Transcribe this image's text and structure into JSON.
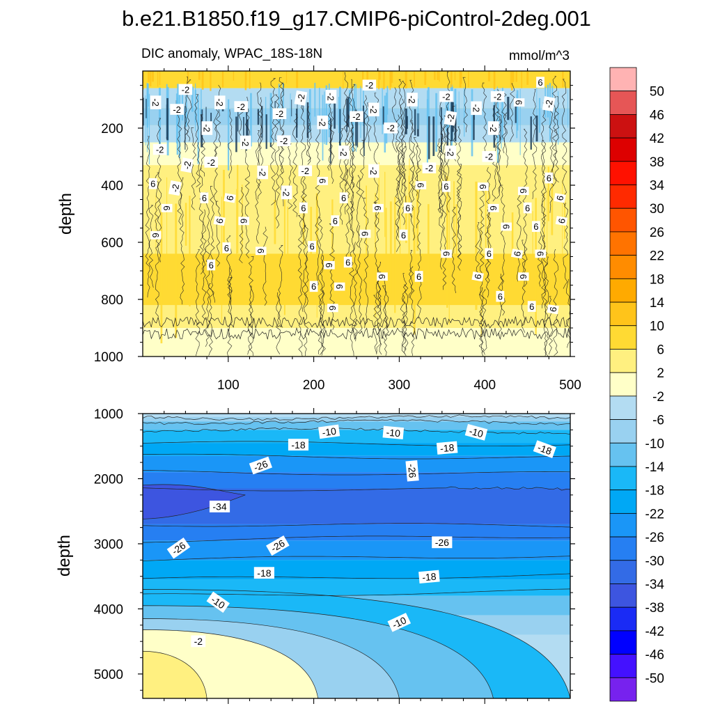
{
  "title": "b.e21.B1850.f19_g17.CMIP6-piControl-2deg.001",
  "chart_data": [
    {
      "type": "heatmap",
      "panel": "upper",
      "subtitle": "DIC anomaly, WPAC_18S-18N",
      "units": "mmol/m^3",
      "ylabel": "depth",
      "xlim": [
        0,
        500
      ],
      "ylim": [
        0,
        1000
      ],
      "y_reversed": true,
      "x_ticks": [
        "100",
        "200",
        "300",
        "400",
        "500"
      ],
      "y_ticks": [
        "200",
        "400",
        "600",
        "800",
        "1000"
      ],
      "contour_labels": [
        {
          "text": "-2",
          "x": 50,
          "y": 65
        },
        {
          "text": "-2",
          "x": 15,
          "y": 110
        },
        {
          "text": "-2",
          "x": 40,
          "y": 135
        },
        {
          "text": "-2",
          "x": 90,
          "y": 110
        },
        {
          "text": "-2",
          "x": 115,
          "y": 125
        },
        {
          "text": "-2",
          "x": 185,
          "y": 95
        },
        {
          "text": "-2",
          "x": 220,
          "y": 90
        },
        {
          "text": "-2",
          "x": 265,
          "y": 50
        },
        {
          "text": "-2",
          "x": 315,
          "y": 100
        },
        {
          "text": "-2",
          "x": 355,
          "y": 90
        },
        {
          "text": "-2",
          "x": 390,
          "y": 130
        },
        {
          "text": "-2",
          "x": 415,
          "y": 90
        },
        {
          "text": "-2",
          "x": 475,
          "y": 115
        },
        {
          "text": "-2",
          "x": 75,
          "y": 200
        },
        {
          "text": "-2",
          "x": 160,
          "y": 150
        },
        {
          "text": "-2",
          "x": 210,
          "y": 180
        },
        {
          "text": "-2",
          "x": 250,
          "y": 160
        },
        {
          "text": "-2",
          "x": 270,
          "y": 135
        },
        {
          "text": "-2",
          "x": 290,
          "y": 200
        },
        {
          "text": "-2",
          "x": 360,
          "y": 165
        },
        {
          "text": "-2",
          "x": 410,
          "y": 200
        },
        {
          "text": "-2",
          "x": 20,
          "y": 275
        },
        {
          "text": "-2",
          "x": 120,
          "y": 250
        },
        {
          "text": "-2",
          "x": 165,
          "y": 245
        },
        {
          "text": "-2",
          "x": 235,
          "y": 285
        },
        {
          "text": "-2",
          "x": 80,
          "y": 320
        },
        {
          "text": "-2",
          "x": 52,
          "y": 330
        },
        {
          "text": "-2",
          "x": 140,
          "y": 355
        },
        {
          "text": "-2",
          "x": 190,
          "y": 350
        },
        {
          "text": "-2",
          "x": 270,
          "y": 350
        },
        {
          "text": "-2",
          "x": 335,
          "y": 340
        },
        {
          "text": "-2",
          "x": 360,
          "y": 285
        },
        {
          "text": "-2",
          "x": 405,
          "y": 300
        },
        {
          "text": "-2",
          "x": 38,
          "y": 410
        },
        {
          "text": "-2",
          "x": 168,
          "y": 425
        },
        {
          "text": "6",
          "x": 465,
          "y": 40
        },
        {
          "text": "6",
          "x": 440,
          "y": 110
        },
        {
          "text": "6",
          "x": 12,
          "y": 395
        },
        {
          "text": "6",
          "x": 28,
          "y": 480
        },
        {
          "text": "6",
          "x": 72,
          "y": 445
        },
        {
          "text": "6",
          "x": 102,
          "y": 445
        },
        {
          "text": "6",
          "x": 210,
          "y": 385
        },
        {
          "text": "6",
          "x": 235,
          "y": 445
        },
        {
          "text": "6",
          "x": 325,
          "y": 400
        },
        {
          "text": "6",
          "x": 355,
          "y": 405
        },
        {
          "text": "6",
          "x": 398,
          "y": 405
        },
        {
          "text": "6",
          "x": 475,
          "y": 375
        },
        {
          "text": "6",
          "x": 488,
          "y": 445
        },
        {
          "text": "6",
          "x": 445,
          "y": 420
        },
        {
          "text": "6",
          "x": 188,
          "y": 480
        },
        {
          "text": "6",
          "x": 275,
          "y": 480
        },
        {
          "text": "6",
          "x": 310,
          "y": 480
        },
        {
          "text": "6",
          "x": 410,
          "y": 480
        },
        {
          "text": "6",
          "x": 450,
          "y": 480
        },
        {
          "text": "6",
          "x": 90,
          "y": 525
        },
        {
          "text": "6",
          "x": 118,
          "y": 525
        },
        {
          "text": "6",
          "x": 225,
          "y": 525
        },
        {
          "text": "6",
          "x": 260,
          "y": 570
        },
        {
          "text": "6",
          "x": 305,
          "y": 575
        },
        {
          "text": "6",
          "x": 425,
          "y": 545
        },
        {
          "text": "6",
          "x": 460,
          "y": 545
        },
        {
          "text": "6",
          "x": 490,
          "y": 525
        },
        {
          "text": "6",
          "x": 15,
          "y": 575
        },
        {
          "text": "6",
          "x": 98,
          "y": 620
        },
        {
          "text": "6",
          "x": 138,
          "y": 630
        },
        {
          "text": "6",
          "x": 198,
          "y": 615
        },
        {
          "text": "6",
          "x": 355,
          "y": 640
        },
        {
          "text": "6",
          "x": 405,
          "y": 640
        },
        {
          "text": "6",
          "x": 438,
          "y": 640
        },
        {
          "text": "6",
          "x": 465,
          "y": 640
        },
        {
          "text": "6",
          "x": 80,
          "y": 680
        },
        {
          "text": "6",
          "x": 218,
          "y": 680
        },
        {
          "text": "6",
          "x": 240,
          "y": 670
        },
        {
          "text": "6",
          "x": 280,
          "y": 720
        },
        {
          "text": "6",
          "x": 323,
          "y": 720
        },
        {
          "text": "6",
          "x": 392,
          "y": 720
        },
        {
          "text": "6",
          "x": 445,
          "y": 720
        },
        {
          "text": "6",
          "x": 200,
          "y": 755
        },
        {
          "text": "6",
          "x": 230,
          "y": 755
        },
        {
          "text": "6",
          "x": 418,
          "y": 790
        },
        {
          "text": "6",
          "x": 222,
          "y": 830
        },
        {
          "text": "6",
          "x": 455,
          "y": 825
        },
        {
          "text": "6",
          "x": 480,
          "y": 835
        }
      ]
    },
    {
      "type": "heatmap",
      "panel": "lower",
      "ylabel": "depth",
      "xlim": [
        0,
        500
      ],
      "ylim": [
        1000,
        5375
      ],
      "y_reversed": true,
      "y_ticks": [
        "1000",
        "2000",
        "3000",
        "4000",
        "5000"
      ],
      "contour_labels": [
        {
          "text": "-10",
          "x": 218,
          "y": 1280
        },
        {
          "text": "-10",
          "x": 293,
          "y": 1295
        },
        {
          "text": "-10",
          "x": 390,
          "y": 1290
        },
        {
          "text": "-18",
          "x": 182,
          "y": 1480
        },
        {
          "text": "-18",
          "x": 356,
          "y": 1530
        },
        {
          "text": "-18",
          "x": 470,
          "y": 1550
        },
        {
          "text": "-26",
          "x": 138,
          "y": 1800
        },
        {
          "text": "-26",
          "x": 315,
          "y": 1880
        },
        {
          "text": "-34",
          "x": 90,
          "y": 2430
        },
        {
          "text": "-26",
          "x": 42,
          "y": 3070
        },
        {
          "text": "-26",
          "x": 158,
          "y": 3030
        },
        {
          "text": "-26",
          "x": 350,
          "y": 2980
        },
        {
          "text": "-18",
          "x": 142,
          "y": 3450
        },
        {
          "text": "-18",
          "x": 335,
          "y": 3510
        },
        {
          "text": "-10",
          "x": 88,
          "y": 3900
        },
        {
          "text": "-10",
          "x": 300,
          "y": 4210
        },
        {
          "text": "-2",
          "x": 65,
          "y": 4500
        }
      ]
    },
    {
      "type": "colorbar",
      "labels": [
        "50",
        "46",
        "42",
        "38",
        "34",
        "30",
        "26",
        "22",
        "18",
        "14",
        "10",
        "6",
        "2",
        "-2",
        "-6",
        "-10",
        "-14",
        "-18",
        "-22",
        "-26",
        "-30",
        "-34",
        "-38",
        "-42",
        "-46",
        "-50"
      ],
      "colors_top_to_bottom": [
        "#FFB3B3",
        "#E65656",
        "#CC1111",
        "#DD0000",
        "#FF1100",
        "#FF2A00",
        "#FF5500",
        "#FF7300",
        "#FF8C00",
        "#FFAA00",
        "#FFC41A",
        "#FFDA33",
        "#FFF080",
        "#FFFFC8",
        "#B3DCF2",
        "#99D1F0",
        "#66C2F0",
        "#1AB8F7",
        "#00A8F5",
        "#1A96F7",
        "#267FF2",
        "#336BE6",
        "#3D55E0",
        "#1A2BF5",
        "#0000FF",
        "#4411FF",
        "#7722EE"
      ]
    }
  ]
}
